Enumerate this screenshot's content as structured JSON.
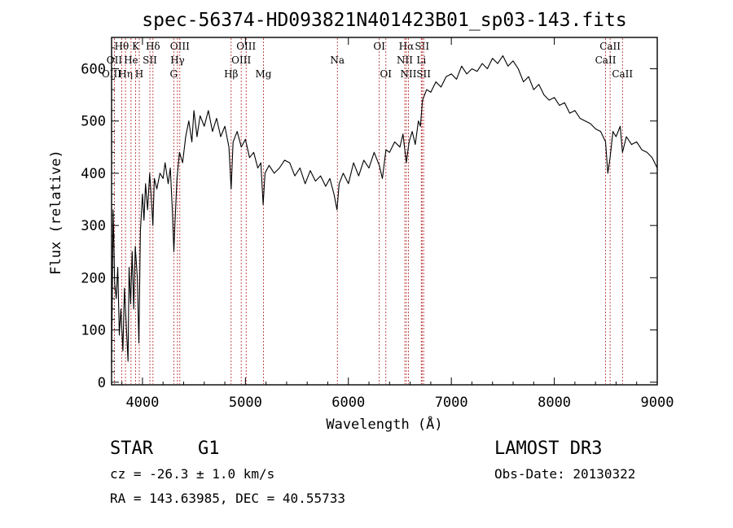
{
  "chart_data": {
    "type": "line",
    "title": "spec-56374-HD093821N401423B01_sp03-143.fits",
    "xlabel": "Wavelength (Å)",
    "ylabel": "Flux (relative)",
    "xlim": [
      3700,
      9000
    ],
    "ylim": [
      -5,
      660
    ],
    "xticks": [
      4000,
      5000,
      6000,
      7000,
      8000,
      9000
    ],
    "xtick_labels": [
      "4000",
      "5000",
      "6000",
      "7000",
      "8000",
      "9000"
    ],
    "yticks": [
      0,
      100,
      200,
      300,
      400,
      500,
      600
    ],
    "ytick_labels": [
      "0",
      "100",
      "200",
      "300",
      "400",
      "500",
      "600"
    ],
    "series": [
      {
        "name": "flux",
        "color": "#000000",
        "points": [
          [
            3700,
            30
          ],
          [
            3715,
            330
          ],
          [
            3730,
            190
          ],
          [
            3745,
            160
          ],
          [
            3760,
            220
          ],
          [
            3775,
            90
          ],
          [
            3790,
            140
          ],
          [
            3810,
            60
          ],
          [
            3825,
            180
          ],
          [
            3840,
            120
          ],
          [
            3860,
            40
          ],
          [
            3870,
            220
          ],
          [
            3885,
            150
          ],
          [
            3900,
            250
          ],
          [
            3915,
            140
          ],
          [
            3930,
            260
          ],
          [
            3950,
            200
          ],
          [
            3965,
            75
          ],
          [
            3980,
            290
          ],
          [
            4000,
            360
          ],
          [
            4015,
            310
          ],
          [
            4030,
            380
          ],
          [
            4050,
            330
          ],
          [
            4070,
            400
          ],
          [
            4090,
            340
          ],
          [
            4101,
            300
          ],
          [
            4115,
            390
          ],
          [
            4140,
            370
          ],
          [
            4170,
            400
          ],
          [
            4200,
            390
          ],
          [
            4220,
            420
          ],
          [
            4250,
            380
          ],
          [
            4270,
            410
          ],
          [
            4290,
            330
          ],
          [
            4305,
            250
          ],
          [
            4315,
            300
          ],
          [
            4335,
            390
          ],
          [
            4360,
            440
          ],
          [
            4390,
            420
          ],
          [
            4420,
            470
          ],
          [
            4450,
            500
          ],
          [
            4480,
            460
          ],
          [
            4500,
            520
          ],
          [
            4530,
            470
          ],
          [
            4560,
            510
          ],
          [
            4600,
            490
          ],
          [
            4640,
            520
          ],
          [
            4680,
            480
          ],
          [
            4720,
            505
          ],
          [
            4760,
            470
          ],
          [
            4800,
            490
          ],
          [
            4840,
            450
          ],
          [
            4861,
            370
          ],
          [
            4880,
            460
          ],
          [
            4920,
            480
          ],
          [
            4960,
            450
          ],
          [
            5000,
            465
          ],
          [
            5040,
            430
          ],
          [
            5080,
            440
          ],
          [
            5120,
            410
          ],
          [
            5150,
            420
          ],
          [
            5172,
            340
          ],
          [
            5190,
            400
          ],
          [
            5230,
            415
          ],
          [
            5280,
            400
          ],
          [
            5330,
            410
          ],
          [
            5380,
            425
          ],
          [
            5430,
            420
          ],
          [
            5480,
            395
          ],
          [
            5530,
            410
          ],
          [
            5580,
            380
          ],
          [
            5630,
            405
          ],
          [
            5680,
            385
          ],
          [
            5730,
            395
          ],
          [
            5780,
            375
          ],
          [
            5820,
            390
          ],
          [
            5860,
            360
          ],
          [
            5890,
            330
          ],
          [
            5910,
            380
          ],
          [
            5950,
            400
          ],
          [
            6000,
            380
          ],
          [
            6050,
            420
          ],
          [
            6100,
            395
          ],
          [
            6150,
            425
          ],
          [
            6200,
            410
          ],
          [
            6250,
            440
          ],
          [
            6300,
            415
          ],
          [
            6330,
            390
          ],
          [
            6365,
            445
          ],
          [
            6400,
            440
          ],
          [
            6450,
            460
          ],
          [
            6500,
            450
          ],
          [
            6530,
            475
          ],
          [
            6563,
            420
          ],
          [
            6590,
            460
          ],
          [
            6620,
            480
          ],
          [
            6650,
            455
          ],
          [
            6680,
            500
          ],
          [
            6700,
            490
          ],
          [
            6720,
            540
          ],
          [
            6760,
            560
          ],
          [
            6800,
            555
          ],
          [
            6850,
            575
          ],
          [
            6900,
            565
          ],
          [
            6950,
            585
          ],
          [
            7000,
            590
          ],
          [
            7050,
            580
          ],
          [
            7100,
            605
          ],
          [
            7150,
            590
          ],
          [
            7200,
            600
          ],
          [
            7250,
            595
          ],
          [
            7300,
            610
          ],
          [
            7350,
            600
          ],
          [
            7400,
            620
          ],
          [
            7450,
            610
          ],
          [
            7500,
            625
          ],
          [
            7550,
            605
          ],
          [
            7600,
            615
          ],
          [
            7650,
            600
          ],
          [
            7700,
            575
          ],
          [
            7750,
            585
          ],
          [
            7800,
            560
          ],
          [
            7850,
            570
          ],
          [
            7900,
            550
          ],
          [
            7950,
            540
          ],
          [
            8000,
            545
          ],
          [
            8050,
            530
          ],
          [
            8100,
            535
          ],
          [
            8150,
            515
          ],
          [
            8200,
            520
          ],
          [
            8250,
            505
          ],
          [
            8300,
            500
          ],
          [
            8350,
            495
          ],
          [
            8400,
            485
          ],
          [
            8450,
            480
          ],
          [
            8498,
            460
          ],
          [
            8520,
            400
          ],
          [
            8542,
            430
          ],
          [
            8570,
            480
          ],
          [
            8600,
            470
          ],
          [
            8640,
            490
          ],
          [
            8662,
            440
          ],
          [
            8700,
            470
          ],
          [
            8750,
            455
          ],
          [
            8800,
            460
          ],
          [
            8850,
            445
          ],
          [
            8900,
            440
          ],
          [
            8950,
            430
          ],
          [
            9000,
            410
          ]
        ]
      }
    ],
    "lines": [
      {
        "label": "Hθ",
        "wavelength": 3798,
        "row": 1
      },
      {
        "label": "OII",
        "wavelength": 3727,
        "row": 2
      },
      {
        "label": "OIII",
        "wavelength": 3700,
        "row": 3
      },
      {
        "label": "Hη",
        "wavelength": 3835,
        "row": 3
      },
      {
        "label": "He",
        "wavelength": 3889,
        "row": 2
      },
      {
        "label": "K",
        "wavelength": 3934,
        "row": 1
      },
      {
        "label": "SII",
        "wavelength": 4072,
        "row": 2
      },
      {
        "label": "H",
        "wavelength": 3969,
        "row": 3
      },
      {
        "label": "Hδ",
        "wavelength": 4102,
        "row": 1
      },
      {
        "label": "OIII",
        "wavelength": 4363,
        "row": 1
      },
      {
        "label": "Hγ",
        "wavelength": 4340,
        "row": 2
      },
      {
        "label": "G",
        "wavelength": 4304,
        "row": 3
      },
      {
        "label": "OIII",
        "wavelength": 5007,
        "row": 1
      },
      {
        "label": "OIII",
        "wavelength": 4959,
        "row": 2
      },
      {
        "label": "Hβ",
        "wavelength": 4861,
        "row": 3
      },
      {
        "label": "Mg",
        "wavelength": 5175,
        "row": 3
      },
      {
        "label": "Na",
        "wavelength": 5893,
        "row": 2
      },
      {
        "label": "OI",
        "wavelength": 6300,
        "row": 1
      },
      {
        "label": "OI",
        "wavelength": 6364,
        "row": 3
      },
      {
        "label": "Hα",
        "wavelength": 6563,
        "row": 1
      },
      {
        "label": "NII",
        "wavelength": 6548,
        "row": 2
      },
      {
        "label": "NII",
        "wavelength": 6583,
        "row": 3
      },
      {
        "label": "SII",
        "wavelength": 6716,
        "row": 1
      },
      {
        "label": "Li",
        "wavelength": 6708,
        "row": 2
      },
      {
        "label": "SII",
        "wavelength": 6731,
        "row": 3
      },
      {
        "label": "CaII",
        "wavelength": 8542,
        "row": 1
      },
      {
        "label": "CaII",
        "wavelength": 8498,
        "row": 2
      },
      {
        "label": "CaII",
        "wavelength": 8662,
        "row": 3
      }
    ]
  },
  "info": {
    "object_class": "STAR",
    "subclass": "G1",
    "survey": "LAMOST DR3",
    "redshift": "cz = -26.3 ± 1.0 km/s",
    "obs_date": "Obs-Date: 20130322",
    "coords": "RA = 143.63985, DEC =  40.55733"
  }
}
